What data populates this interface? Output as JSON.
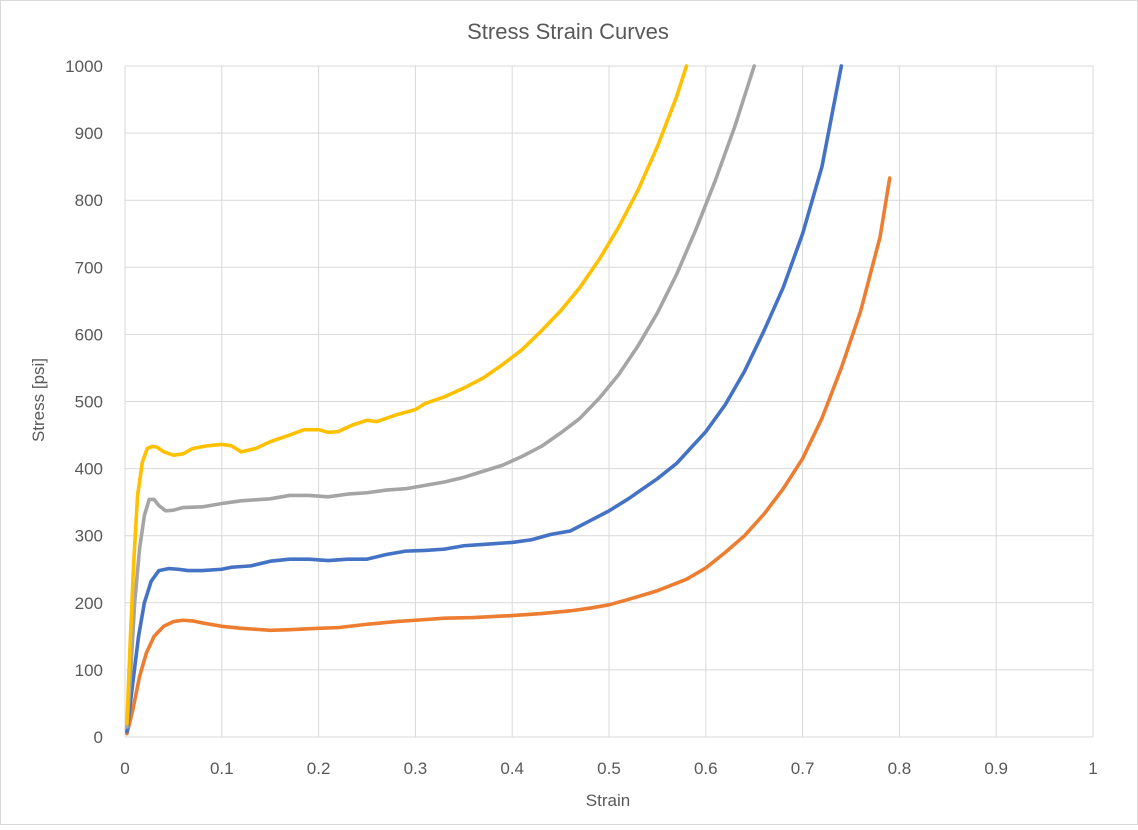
{
  "chart_data": {
    "type": "line",
    "title": "Stress Strain Curves",
    "xlabel": "Strain",
    "ylabel": "Stress [psi]",
    "xlim": [
      0,
      1
    ],
    "ylim": [
      0,
      1000
    ],
    "x_ticks": [
      0,
      0.1,
      0.2,
      0.3,
      0.4,
      0.5,
      0.6,
      0.7,
      0.8,
      0.9,
      1
    ],
    "x_tick_labels": [
      "0",
      "0.1",
      "0.2",
      "0.3",
      "0.4",
      "0.5",
      "0.6",
      "0.7",
      "0.8",
      "0.9",
      "1"
    ],
    "y_ticks": [
      0,
      100,
      200,
      300,
      400,
      500,
      600,
      700,
      800,
      900,
      1000
    ],
    "y_tick_labels": [
      "0",
      "100",
      "200",
      "300",
      "400",
      "500",
      "600",
      "700",
      "800",
      "900",
      "1000"
    ],
    "grid": true,
    "legend": "none",
    "series": [
      {
        "color": "#ED7D31",
        "points": [
          [
            0.002,
            5
          ],
          [
            0.008,
            40
          ],
          [
            0.015,
            90
          ],
          [
            0.022,
            125
          ],
          [
            0.03,
            150
          ],
          [
            0.04,
            165
          ],
          [
            0.05,
            172
          ],
          [
            0.06,
            174
          ],
          [
            0.07,
            173
          ],
          [
            0.08,
            170
          ],
          [
            0.1,
            165
          ],
          [
            0.12,
            162
          ],
          [
            0.14,
            160
          ],
          [
            0.15,
            159
          ],
          [
            0.17,
            160
          ],
          [
            0.2,
            162
          ],
          [
            0.22,
            163
          ],
          [
            0.25,
            168
          ],
          [
            0.28,
            172
          ],
          [
            0.3,
            174
          ],
          [
            0.33,
            177
          ],
          [
            0.36,
            178
          ],
          [
            0.4,
            181
          ],
          [
            0.43,
            184
          ],
          [
            0.46,
            188
          ],
          [
            0.48,
            192
          ],
          [
            0.5,
            197
          ],
          [
            0.52,
            205
          ],
          [
            0.55,
            218
          ],
          [
            0.58,
            235
          ],
          [
            0.6,
            252
          ],
          [
            0.62,
            275
          ],
          [
            0.64,
            300
          ],
          [
            0.66,
            332
          ],
          [
            0.68,
            370
          ],
          [
            0.7,
            415
          ],
          [
            0.72,
            475
          ],
          [
            0.74,
            550
          ],
          [
            0.76,
            635
          ],
          [
            0.78,
            745
          ],
          [
            0.79,
            833
          ]
        ]
      },
      {
        "color": "#4472C4",
        "points": [
          [
            0.002,
            8
          ],
          [
            0.008,
            80
          ],
          [
            0.014,
            150
          ],
          [
            0.02,
            200
          ],
          [
            0.027,
            232
          ],
          [
            0.035,
            248
          ],
          [
            0.045,
            251
          ],
          [
            0.055,
            250
          ],
          [
            0.065,
            248
          ],
          [
            0.08,
            248
          ],
          [
            0.1,
            250
          ],
          [
            0.11,
            253
          ],
          [
            0.13,
            255
          ],
          [
            0.15,
            262
          ],
          [
            0.17,
            265
          ],
          [
            0.19,
            265
          ],
          [
            0.21,
            263
          ],
          [
            0.23,
            265
          ],
          [
            0.25,
            265
          ],
          [
            0.27,
            272
          ],
          [
            0.29,
            277
          ],
          [
            0.31,
            278
          ],
          [
            0.33,
            280
          ],
          [
            0.35,
            285
          ],
          [
            0.37,
            287
          ],
          [
            0.4,
            290
          ],
          [
            0.42,
            294
          ],
          [
            0.44,
            302
          ],
          [
            0.46,
            307
          ],
          [
            0.48,
            322
          ],
          [
            0.5,
            337
          ],
          [
            0.52,
            355
          ],
          [
            0.55,
            385
          ],
          [
            0.57,
            408
          ],
          [
            0.6,
            455
          ],
          [
            0.62,
            495
          ],
          [
            0.64,
            545
          ],
          [
            0.66,
            605
          ],
          [
            0.68,
            670
          ],
          [
            0.7,
            750
          ],
          [
            0.72,
            850
          ],
          [
            0.74,
            1000
          ]
        ]
      },
      {
        "color": "#A5A5A5",
        "points": [
          [
            0.002,
            15
          ],
          [
            0.006,
            100
          ],
          [
            0.01,
            200
          ],
          [
            0.015,
            280
          ],
          [
            0.02,
            330
          ],
          [
            0.025,
            354
          ],
          [
            0.03,
            354
          ],
          [
            0.035,
            345
          ],
          [
            0.042,
            337
          ],
          [
            0.05,
            338
          ],
          [
            0.06,
            342
          ],
          [
            0.08,
            343
          ],
          [
            0.1,
            348
          ],
          [
            0.12,
            352
          ],
          [
            0.15,
            355
          ],
          [
            0.17,
            360
          ],
          [
            0.19,
            360
          ],
          [
            0.21,
            358
          ],
          [
            0.23,
            362
          ],
          [
            0.25,
            364
          ],
          [
            0.27,
            368
          ],
          [
            0.29,
            370
          ],
          [
            0.31,
            375
          ],
          [
            0.33,
            380
          ],
          [
            0.35,
            387
          ],
          [
            0.37,
            396
          ],
          [
            0.39,
            405
          ],
          [
            0.41,
            418
          ],
          [
            0.43,
            433
          ],
          [
            0.45,
            453
          ],
          [
            0.47,
            475
          ],
          [
            0.49,
            505
          ],
          [
            0.51,
            540
          ],
          [
            0.53,
            583
          ],
          [
            0.55,
            632
          ],
          [
            0.57,
            690
          ],
          [
            0.59,
            757
          ],
          [
            0.61,
            830
          ],
          [
            0.63,
            910
          ],
          [
            0.65,
            1000
          ]
        ]
      },
      {
        "color": "#FFC000",
        "points": [
          [
            0.002,
            20
          ],
          [
            0.005,
            130
          ],
          [
            0.009,
            260
          ],
          [
            0.013,
            360
          ],
          [
            0.018,
            410
          ],
          [
            0.023,
            430
          ],
          [
            0.028,
            433
          ],
          [
            0.033,
            432
          ],
          [
            0.04,
            425
          ],
          [
            0.05,
            420
          ],
          [
            0.06,
            422
          ],
          [
            0.07,
            430
          ],
          [
            0.085,
            434
          ],
          [
            0.1,
            436
          ],
          [
            0.11,
            434
          ],
          [
            0.12,
            425
          ],
          [
            0.135,
            430
          ],
          [
            0.15,
            440
          ],
          [
            0.17,
            450
          ],
          [
            0.185,
            458
          ],
          [
            0.2,
            458
          ],
          [
            0.21,
            454
          ],
          [
            0.22,
            455
          ],
          [
            0.235,
            465
          ],
          [
            0.25,
            472
          ],
          [
            0.26,
            470
          ],
          [
            0.28,
            480
          ],
          [
            0.3,
            488
          ],
          [
            0.31,
            497
          ],
          [
            0.33,
            507
          ],
          [
            0.35,
            520
          ],
          [
            0.37,
            535
          ],
          [
            0.39,
            555
          ],
          [
            0.41,
            577
          ],
          [
            0.43,
            605
          ],
          [
            0.45,
            635
          ],
          [
            0.47,
            670
          ],
          [
            0.49,
            712
          ],
          [
            0.51,
            760
          ],
          [
            0.53,
            815
          ],
          [
            0.55,
            880
          ],
          [
            0.57,
            955
          ],
          [
            0.58,
            1000
          ]
        ]
      }
    ]
  }
}
